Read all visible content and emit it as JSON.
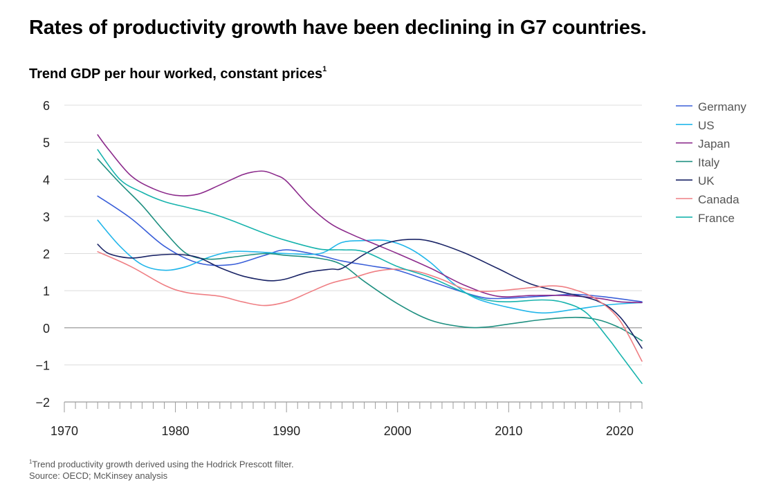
{
  "title": "Rates of productivity growth have been declining in G7 countries.",
  "subtitle": "Trend GDP per hour worked, constant prices",
  "subtitle_sup": "1",
  "footnote_mark": "1",
  "footnote": "Trend productivity growth derived using the Hodrick Prescott filter.",
  "source": "Source: OECD; McKinsey analysis",
  "chart_data": {
    "type": "line",
    "title": "Trend GDP per hour worked, constant prices",
    "xlabel": "",
    "ylabel": "",
    "xlim": [
      1970,
      2022
    ],
    "ylim": [
      -2,
      6
    ],
    "x_ticks": [
      1970,
      1980,
      1990,
      2000,
      2010,
      2020
    ],
    "y_ticks": [
      6,
      5,
      4,
      3,
      2,
      1,
      0,
      -1,
      -2
    ],
    "y_tick_labels": [
      "6",
      "5",
      "4",
      "3",
      "2",
      "1",
      "0",
      "−1",
      "−2"
    ],
    "grid": true,
    "legend_position": "right",
    "series": [
      {
        "name": "Germany",
        "color": "#3a5fd9",
        "x": [
          1973,
          1976,
          1979,
          1982,
          1985,
          1988,
          1990,
          1993,
          1995,
          1998,
          2000,
          2003,
          2006,
          2008,
          2010,
          2013,
          2016,
          2019,
          2022
        ],
        "y": [
          3.55,
          2.95,
          2.2,
          1.75,
          1.7,
          1.95,
          2.1,
          1.95,
          1.8,
          1.65,
          1.55,
          1.25,
          0.95,
          0.8,
          0.8,
          0.85,
          0.9,
          0.82,
          0.7
        ]
      },
      {
        "name": "US",
        "color": "#22b6ea",
        "x": [
          1973,
          1975,
          1977,
          1979,
          1981,
          1983,
          1985,
          1987,
          1990,
          1993,
          1995,
          1997,
          1999,
          2001,
          2003,
          2005,
          2007,
          2010,
          2013,
          2016,
          2019,
          2022
        ],
        "y": [
          2.9,
          2.2,
          1.7,
          1.55,
          1.65,
          1.9,
          2.05,
          2.05,
          2.0,
          2.0,
          2.3,
          2.35,
          2.35,
          2.15,
          1.75,
          1.2,
          0.8,
          0.55,
          0.4,
          0.5,
          0.62,
          0.68
        ]
      },
      {
        "name": "Japan",
        "color": "#8b2a8b",
        "x": [
          1973,
          1974,
          1976,
          1978,
          1980,
          1982,
          1984,
          1986,
          1987,
          1988,
          1989,
          1990,
          1992,
          1994,
          1996,
          1998,
          2000,
          2003,
          2006,
          2009,
          2012,
          2015,
          2018,
          2020,
          2022
        ],
        "y": [
          5.2,
          4.8,
          4.1,
          3.75,
          3.57,
          3.6,
          3.85,
          4.12,
          4.2,
          4.22,
          4.12,
          3.95,
          3.3,
          2.8,
          2.5,
          2.25,
          2.0,
          1.6,
          1.15,
          0.85,
          0.87,
          0.87,
          0.8,
          0.7,
          0.68
        ]
      },
      {
        "name": "Italy",
        "color": "#1e8f80",
        "x": [
          1973,
          1975,
          1977,
          1979,
          1981,
          1983,
          1985,
          1988,
          1990,
          1993,
          1995,
          1997,
          2000,
          2003,
          2006,
          2008,
          2010,
          2013,
          2016,
          2018,
          2020,
          2022
        ],
        "y": [
          4.55,
          3.9,
          3.3,
          2.6,
          2.0,
          1.85,
          1.9,
          2.0,
          1.95,
          1.87,
          1.7,
          1.25,
          0.65,
          0.2,
          0.02,
          0.02,
          0.1,
          0.22,
          0.28,
          0.22,
          0.0,
          -0.35
        ]
      },
      {
        "name": "UK",
        "color": "#1a2466",
        "x": [
          1973,
          1974,
          1976,
          1978,
          1980,
          1982,
          1984,
          1986,
          1988,
          1989,
          1990,
          1992,
          1994,
          1995,
          1997,
          1999,
          2001,
          2003,
          2006,
          2009,
          2012,
          2015,
          2018,
          2020,
          2022
        ],
        "y": [
          2.25,
          2.0,
          1.88,
          1.95,
          1.98,
          1.9,
          1.62,
          1.4,
          1.28,
          1.27,
          1.32,
          1.5,
          1.58,
          1.6,
          1.98,
          2.28,
          2.38,
          2.33,
          2.02,
          1.6,
          1.18,
          0.95,
          0.72,
          0.3,
          -0.55
        ]
      },
      {
        "name": "Canada",
        "color": "#ef7e83",
        "x": [
          1973,
          1976,
          1979,
          1981,
          1984,
          1986,
          1988,
          1990,
          1992,
          1994,
          1996,
          1998,
          2000,
          2002,
          2004,
          2006,
          2008,
          2011,
          2014,
          2016,
          2018,
          2020,
          2022
        ],
        "y": [
          2.05,
          1.65,
          1.15,
          0.95,
          0.85,
          0.7,
          0.6,
          0.7,
          0.95,
          1.2,
          1.35,
          1.52,
          1.58,
          1.5,
          1.3,
          1.05,
          0.98,
          1.05,
          1.13,
          1.02,
          0.75,
          0.2,
          -0.9
        ]
      },
      {
        "name": "France",
        "color": "#17b3ad",
        "x": [
          1973,
          1975,
          1977,
          1979,
          1981,
          1983,
          1985,
          1988,
          1990,
          1993,
          1995,
          1997,
          2000,
          2003,
          2006,
          2008,
          2010,
          2013,
          2015,
          2017,
          2019,
          2020,
          2022
        ],
        "y": [
          4.8,
          4.0,
          3.65,
          3.4,
          3.25,
          3.1,
          2.9,
          2.55,
          2.35,
          2.12,
          2.1,
          2.05,
          1.65,
          1.35,
          0.95,
          0.75,
          0.7,
          0.75,
          0.68,
          0.4,
          -0.3,
          -0.7,
          -1.5
        ]
      }
    ]
  }
}
